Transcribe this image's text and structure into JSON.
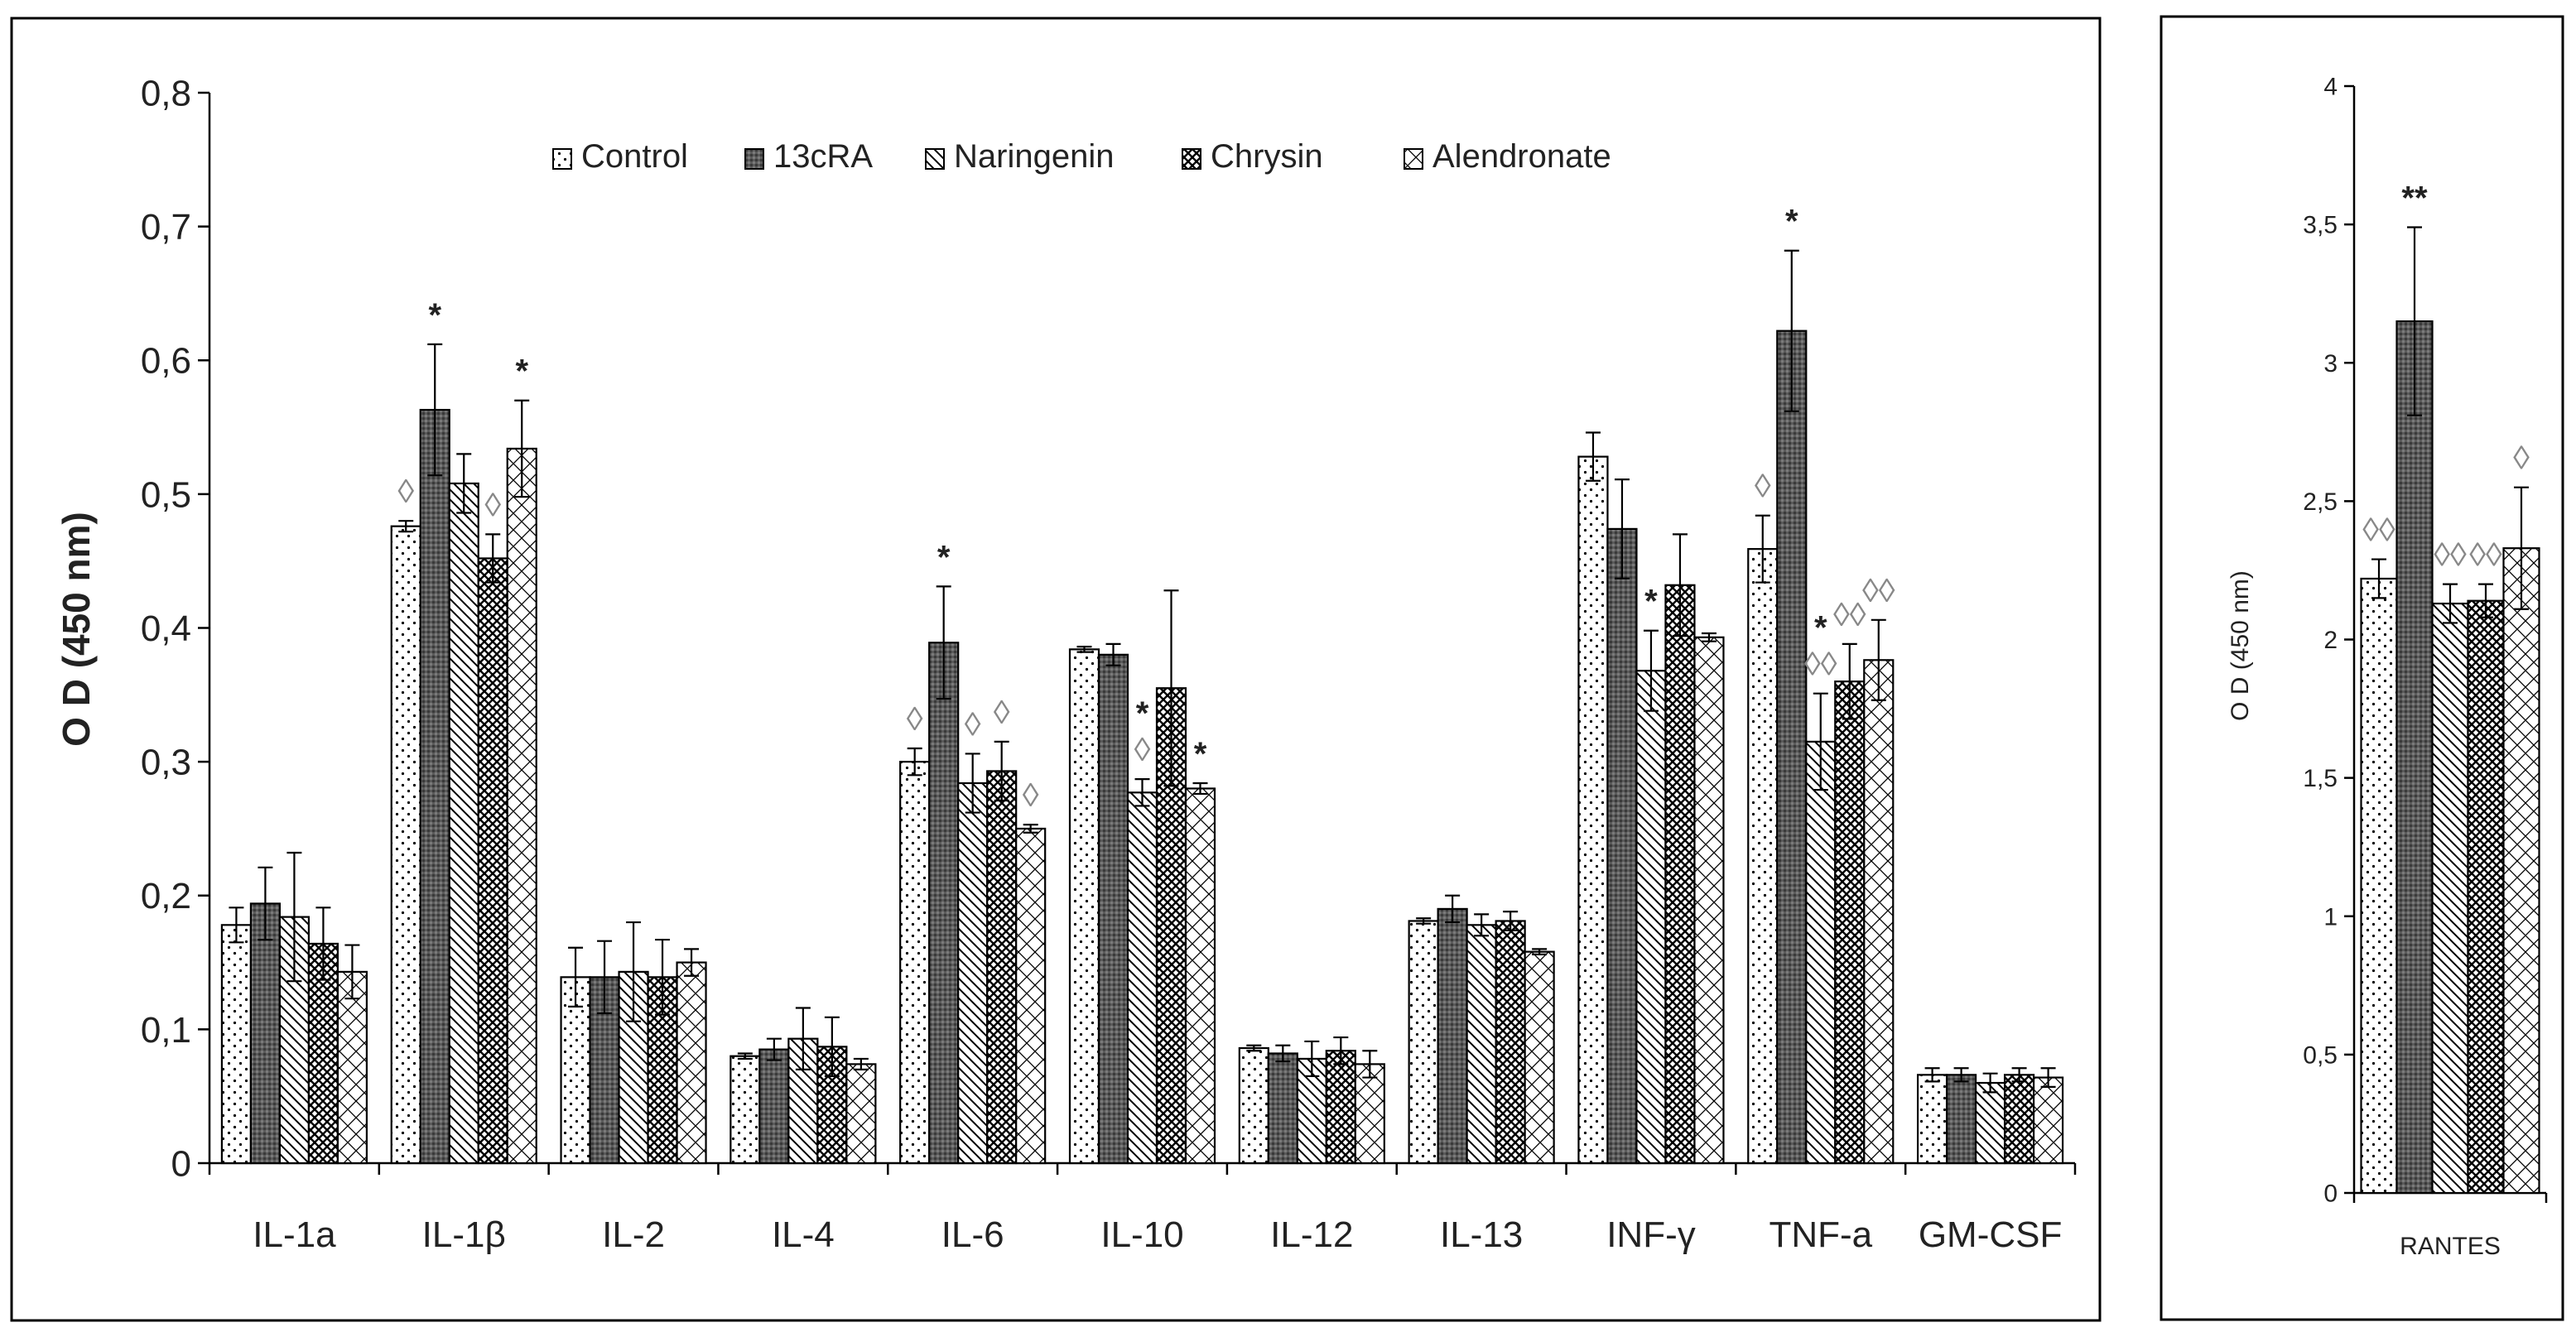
{
  "series": [
    {
      "name": "Control",
      "pattern": "pat-dots"
    },
    {
      "name": "13cRA",
      "pattern": "pat-dark"
    },
    {
      "name": "Naringenin",
      "pattern": "pat-diag"
    },
    {
      "name": "Chrysin",
      "pattern": "pat-cross"
    },
    {
      "name": "Alendronate",
      "pattern": "pat-zig"
    }
  ],
  "chart_data": [
    {
      "type": "bar",
      "panel": "main",
      "ylabel": "O D (450 nm)",
      "xlabel": "",
      "ylim": [
        0,
        0.8
      ],
      "yticks": [
        0,
        0.1,
        0.2,
        0.3,
        0.4,
        0.5,
        0.6,
        0.7,
        0.8
      ],
      "yticklabels": [
        "0",
        "0,1",
        "0,2",
        "0,3",
        "0,4",
        "0,5",
        "0,6",
        "0,7",
        "0,8"
      ],
      "legend_position": "top-center",
      "categories": [
        "IL-1a",
        "IL-1β",
        "IL-2",
        "IL-4",
        "IL-6",
        "IL-10",
        "IL-12",
        "IL-13",
        "INF-γ",
        "TNF-a",
        "GM-CSF"
      ],
      "series": [
        {
          "name": "Control",
          "values": [
            0.178,
            0.476,
            0.139,
            0.08,
            0.3,
            0.384,
            0.086,
            0.181,
            0.528,
            0.459,
            0.066
          ],
          "errors": [
            0.013,
            0.004,
            0.022,
            0.002,
            0.01,
            0.002,
            0.002,
            0.002,
            0.018,
            0.025,
            0.005
          ]
        },
        {
          "name": "13cRA",
          "values": [
            0.194,
            0.563,
            0.139,
            0.085,
            0.389,
            0.38,
            0.082,
            0.19,
            0.474,
            0.622,
            0.066
          ],
          "errors": [
            0.027,
            0.049,
            0.027,
            0.008,
            0.042,
            0.008,
            0.006,
            0.01,
            0.037,
            0.06,
            0.005
          ]
        },
        {
          "name": "Naringenin",
          "values": [
            0.184,
            0.508,
            0.143,
            0.093,
            0.284,
            0.277,
            0.078,
            0.178,
            0.368,
            0.315,
            0.06
          ],
          "errors": [
            0.048,
            0.022,
            0.037,
            0.023,
            0.022,
            0.01,
            0.013,
            0.008,
            0.03,
            0.036,
            0.007
          ]
        },
        {
          "name": "Chrysin",
          "values": [
            0.164,
            0.452,
            0.139,
            0.087,
            0.293,
            0.355,
            0.084,
            0.181,
            0.432,
            0.36,
            0.066
          ],
          "errors": [
            0.027,
            0.018,
            0.028,
            0.022,
            0.022,
            0.073,
            0.01,
            0.007,
            0.038,
            0.028,
            0.005
          ]
        },
        {
          "name": "Alendronate",
          "values": [
            0.143,
            0.534,
            0.15,
            0.074,
            0.25,
            0.28,
            0.074,
            0.158,
            0.393,
            0.376,
            0.064
          ],
          "errors": [
            0.02,
            0.036,
            0.01,
            0.004,
            0.003,
            0.004,
            0.01,
            0.002,
            0.003,
            0.03,
            0.007
          ]
        }
      ],
      "annotations": [
        {
          "category": "IL-1β",
          "series": "13cRA",
          "text": "*",
          "kind": "star"
        },
        {
          "category": "IL-1β",
          "series": "Alendronate",
          "text": "*",
          "kind": "star"
        },
        {
          "category": "IL-1β",
          "series": "Control",
          "text": "◊",
          "kind": "diamond"
        },
        {
          "category": "IL-1β",
          "series": "Chrysin",
          "text": "◊",
          "kind": "diamond"
        },
        {
          "category": "IL-6",
          "series": "13cRA",
          "text": "*",
          "kind": "star"
        },
        {
          "category": "IL-6",
          "series": "Control",
          "text": "◊",
          "kind": "diamond"
        },
        {
          "category": "IL-6",
          "series": "Naringenin",
          "text": "◊",
          "kind": "diamond"
        },
        {
          "category": "IL-6",
          "series": "Chrysin",
          "text": "◊",
          "kind": "diamond"
        },
        {
          "category": "IL-6",
          "series": "Alendronate",
          "text": "◊",
          "kind": "diamond"
        },
        {
          "category": "IL-10",
          "series": "Naringenin",
          "text": "◊",
          "kind": "diamond"
        },
        {
          "category": "IL-10",
          "series": "Naringenin",
          "text": "*",
          "kind": "star"
        },
        {
          "category": "IL-10",
          "series": "Alendronate",
          "text": "*",
          "kind": "star"
        },
        {
          "category": "INF-γ",
          "series": "Naringenin",
          "text": "*",
          "kind": "star"
        },
        {
          "category": "TNF-a",
          "series": "13cRA",
          "text": "*",
          "kind": "star"
        },
        {
          "category": "TNF-a",
          "series": "Control",
          "text": "◊",
          "kind": "diamond"
        },
        {
          "category": "TNF-a",
          "series": "Naringenin",
          "text": "◊◊",
          "kind": "diamond"
        },
        {
          "category": "TNF-a",
          "series": "Naringenin",
          "text": "*",
          "kind": "star"
        },
        {
          "category": "TNF-a",
          "series": "Chrysin",
          "text": "◊◊",
          "kind": "diamond"
        },
        {
          "category": "TNF-a",
          "series": "Alendronate",
          "text": "◊◊",
          "kind": "diamond"
        }
      ]
    },
    {
      "type": "bar",
      "panel": "rantes",
      "ylabel": "O D (450 nm)",
      "xlabel": "",
      "ylim": [
        0,
        4
      ],
      "yticks": [
        0,
        0.5,
        1,
        1.5,
        2,
        2.5,
        3,
        3.5,
        4
      ],
      "yticklabels": [
        "0",
        "0,5",
        "1",
        "1,5",
        "2",
        "2,5",
        "3",
        "3,5",
        "4"
      ],
      "categories": [
        "RANTES"
      ],
      "series": [
        {
          "name": "Control",
          "values": [
            2.22
          ],
          "errors": [
            0.07
          ]
        },
        {
          "name": "13cRA",
          "values": [
            3.15
          ],
          "errors": [
            0.34
          ]
        },
        {
          "name": "Naringenin",
          "values": [
            2.13
          ],
          "errors": [
            0.07
          ]
        },
        {
          "name": "Chrysin",
          "values": [
            2.14
          ],
          "errors": [
            0.06
          ]
        },
        {
          "name": "Alendronate",
          "values": [
            2.33
          ],
          "errors": [
            0.22
          ]
        }
      ],
      "annotations": [
        {
          "category": "RANTES",
          "series": "13cRA",
          "text": "**",
          "kind": "star"
        },
        {
          "category": "RANTES",
          "series": "Control",
          "text": "◊◊",
          "kind": "diamond"
        },
        {
          "category": "RANTES",
          "series": "Naringenin",
          "text": "◊◊",
          "kind": "diamond"
        },
        {
          "category": "RANTES",
          "series": "Chrysin",
          "text": "◊◊",
          "kind": "diamond"
        },
        {
          "category": "RANTES",
          "series": "Alendronate",
          "text": "◊",
          "kind": "diamond"
        }
      ]
    }
  ]
}
